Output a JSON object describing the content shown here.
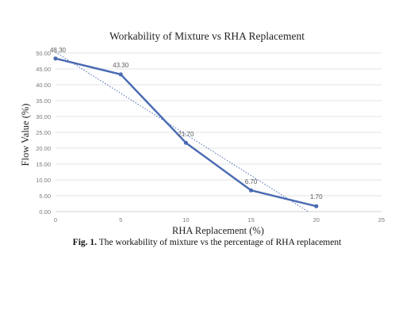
{
  "chart_data": {
    "type": "line",
    "title": "Workability of Mixture vs RHA Replacement",
    "xlabel": "RHA Replacement (%)",
    "ylabel": "Flow Value (%)",
    "x": [
      0,
      5,
      10,
      15,
      20
    ],
    "series": [
      {
        "values": [
          48.3,
          43.3,
          21.7,
          6.7,
          1.7
        ],
        "labels": [
          "48.30",
          "43.30",
          "21.70",
          "6.70",
          "1.70"
        ]
      }
    ],
    "trendline": {
      "type": "linear",
      "style": "dotted"
    },
    "xlim": [
      0,
      25
    ],
    "ylim": [
      0,
      50
    ],
    "xticks": [
      "0",
      "5",
      "10",
      "15",
      "20",
      "25"
    ],
    "yticks": [
      "0.00",
      "5.00",
      "10.00",
      "15.00",
      "20.00",
      "25.00",
      "30.00",
      "35.00",
      "40.00",
      "45.00",
      "50.00"
    ],
    "grid": true,
    "line_color": "#4a6bb3"
  },
  "caption": {
    "label": "Fig. 1.",
    "text": " The workability of mixture vs the percentage of RHA replacement"
  }
}
